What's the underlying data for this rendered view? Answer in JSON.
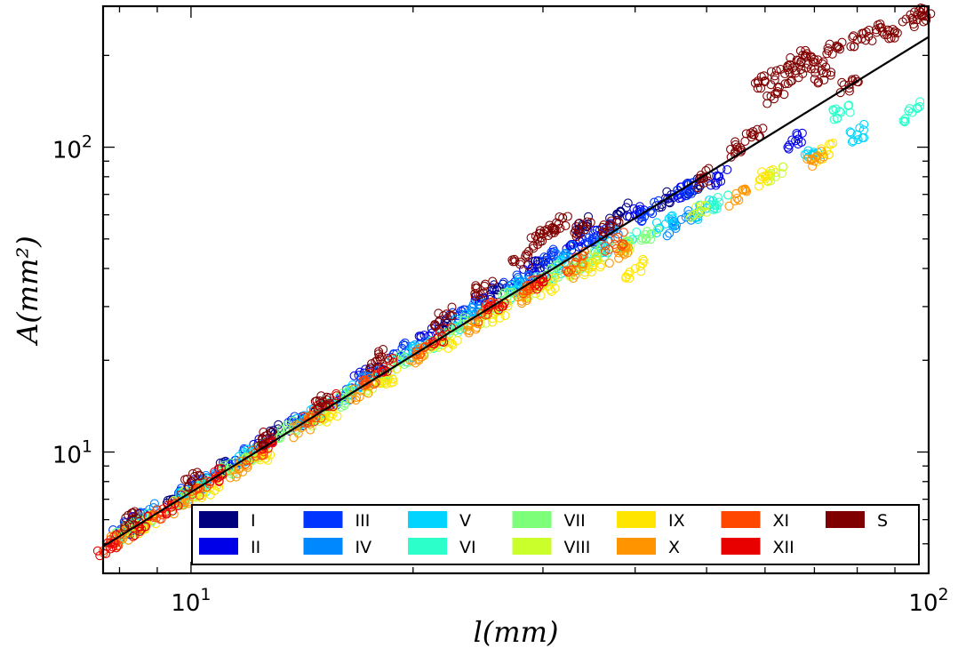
{
  "chart_data": {
    "type": "scatter",
    "title": "",
    "xlabel": "l(mm)",
    "ylabel": "A(mm²)",
    "xscale": "log",
    "yscale": "log",
    "xlim": [
      7.6,
      100
    ],
    "ylim": [
      4.0,
      290
    ],
    "xticks": [
      {
        "value": 10,
        "base": "10",
        "exp": "1"
      },
      {
        "value": 100,
        "base": "10",
        "exp": "2"
      }
    ],
    "yticks": [
      {
        "value": 10,
        "base": "10",
        "exp": "1"
      },
      {
        "value": 100,
        "base": "10",
        "exp": "2"
      }
    ],
    "marker": "open-circle",
    "legend": {
      "placement": "lower-right",
      "ncol": 7,
      "entries": [
        {
          "label": "I",
          "color": "#00007f"
        },
        {
          "label": "II",
          "color": "#0000e8"
        },
        {
          "label": "III",
          "color": "#0034ff"
        },
        {
          "label": "IV",
          "color": "#0088ff"
        },
        {
          "label": "V",
          "color": "#00d4ff"
        },
        {
          "label": "VI",
          "color": "#2cffca"
        },
        {
          "label": "VII",
          "color": "#7dff7a"
        },
        {
          "label": "VIII",
          "color": "#caff2c"
        },
        {
          "label": "IX",
          "color": "#ffe500"
        },
        {
          "label": "X",
          "color": "#ff9400"
        },
        {
          "label": "XI",
          "color": "#ff4700"
        },
        {
          "label": "XII",
          "color": "#e80000"
        },
        {
          "label": "S",
          "color": "#800000"
        }
      ]
    },
    "fit_line": {
      "x": [
        7.6,
        100
      ],
      "y": [
        4.9,
        230
      ],
      "color": "#000000"
    },
    "series": [
      {
        "name": "I",
        "points": [
          [
            8.2,
            5.6
          ],
          [
            9.5,
            7.0
          ],
          [
            11,
            8.8
          ],
          [
            13,
            11.5
          ],
          [
            15,
            14
          ],
          [
            18,
            19
          ],
          [
            22,
            26
          ],
          [
            26,
            34
          ],
          [
            30,
            42
          ],
          [
            34,
            55
          ],
          [
            38,
            60
          ],
          [
            44,
            68
          ],
          [
            48,
            75
          ]
        ]
      },
      {
        "name": "II",
        "points": [
          [
            8.5,
            6.0
          ],
          [
            10.2,
            7.9
          ],
          [
            12.5,
            10.6
          ],
          [
            14,
            12.4
          ],
          [
            17,
            17.5
          ],
          [
            21,
            24
          ],
          [
            25,
            32
          ],
          [
            29,
            40
          ],
          [
            33,
            48
          ],
          [
            36,
            52
          ],
          [
            40,
            60
          ],
          [
            46,
            70
          ],
          [
            52,
            80
          ],
          [
            66,
            105
          ]
        ]
      },
      {
        "name": "III",
        "points": [
          [
            8.0,
            5.5
          ],
          [
            9.8,
            7.4
          ],
          [
            11.5,
            9.4
          ],
          [
            13.8,
            12.6
          ],
          [
            16,
            15
          ],
          [
            19,
            21
          ],
          [
            23,
            28
          ],
          [
            27,
            35
          ],
          [
            31,
            44
          ],
          [
            35,
            50
          ],
          [
            42,
            62
          ],
          [
            47,
            72
          ]
        ]
      },
      {
        "name": "IV",
        "points": [
          [
            8.8,
            6.3
          ],
          [
            10.5,
            8.0
          ],
          [
            12,
            9.8
          ],
          [
            14.5,
            13
          ],
          [
            17.5,
            17.5
          ],
          [
            20.5,
            22
          ],
          [
            24,
            29
          ],
          [
            28,
            36
          ],
          [
            32,
            44
          ],
          [
            37,
            52
          ],
          [
            45,
            55
          ],
          [
            48,
            60
          ]
        ]
      },
      {
        "name": "V",
        "points": [
          [
            8.3,
            5.7
          ],
          [
            9.9,
            7.3
          ],
          [
            11.8,
            9.6
          ],
          [
            14.2,
            12.7
          ],
          [
            16.5,
            15.8
          ],
          [
            19.5,
            20.5
          ],
          [
            23.5,
            27
          ],
          [
            27.5,
            34
          ],
          [
            31.5,
            40
          ],
          [
            36,
            46
          ],
          [
            44,
            56
          ],
          [
            50,
            63
          ],
          [
            70,
            95
          ],
          [
            80,
            110
          ]
        ]
      },
      {
        "name": "VI",
        "points": [
          [
            8.6,
            5.9
          ],
          [
            10.4,
            7.7
          ],
          [
            12.3,
            10
          ],
          [
            15,
            13.5
          ],
          [
            18,
            17.8
          ],
          [
            21.5,
            23
          ],
          [
            25.5,
            29.5
          ],
          [
            29.5,
            36
          ],
          [
            34,
            42
          ],
          [
            39,
            48
          ],
          [
            52,
            66
          ],
          [
            76,
            130
          ],
          [
            95,
            130
          ]
        ]
      },
      {
        "name": "VII",
        "points": [
          [
            8.1,
            5.4
          ],
          [
            9.6,
            6.9
          ],
          [
            11.2,
            8.7
          ],
          [
            13.5,
            11.8
          ],
          [
            16.2,
            15
          ],
          [
            19.2,
            19.7
          ],
          [
            22.8,
            25.5
          ],
          [
            26.8,
            32
          ],
          [
            31,
            38.5
          ],
          [
            35.5,
            44
          ],
          [
            42,
            52
          ]
        ]
      },
      {
        "name": "VIII",
        "points": [
          [
            8.4,
            5.7
          ],
          [
            10.1,
            7.4
          ],
          [
            12.1,
            9.6
          ],
          [
            14.8,
            12.9
          ],
          [
            17.8,
            17
          ],
          [
            21.2,
            22
          ],
          [
            25.2,
            28
          ],
          [
            29.2,
            34.5
          ],
          [
            33.5,
            40.5
          ],
          [
            38.5,
            47
          ],
          [
            49,
            62
          ],
          [
            62,
            80
          ]
        ]
      },
      {
        "name": "IX",
        "points": [
          [
            8.7,
            5.8
          ],
          [
            10.6,
            7.6
          ],
          [
            12.7,
            9.9
          ],
          [
            15.5,
            13.4
          ],
          [
            18.5,
            17.5
          ],
          [
            22.3,
            23
          ],
          [
            26.3,
            29
          ],
          [
            30.5,
            35
          ],
          [
            35,
            41
          ],
          [
            40,
            40
          ],
          [
            60,
            80
          ],
          [
            72,
            95
          ]
        ]
      },
      {
        "name": "X",
        "points": [
          [
            8.0,
            5.2
          ],
          [
            9.7,
            6.8
          ],
          [
            11.6,
            8.8
          ],
          [
            14.1,
            12
          ],
          [
            17,
            15.9
          ],
          [
            20.3,
            20.8
          ],
          [
            24.3,
            26.6
          ],
          [
            28.5,
            33
          ],
          [
            33,
            39
          ],
          [
            38,
            45
          ],
          [
            55,
            68
          ],
          [
            70,
            90
          ]
        ]
      },
      {
        "name": "XI",
        "points": [
          [
            7.8,
            5.0
          ],
          [
            8.9,
            6.1
          ],
          [
            10.3,
            7.6
          ],
          [
            12.2,
            9.9
          ],
          [
            14.6,
            13
          ],
          [
            17.3,
            17
          ],
          [
            20.8,
            22.2
          ],
          [
            24.8,
            28.5
          ],
          [
            28.8,
            35
          ],
          [
            33.2,
            42
          ],
          [
            37.5,
            48
          ]
        ]
      },
      {
        "name": "XII",
        "points": [
          [
            7.7,
            4.9
          ],
          [
            8.5,
            5.7
          ],
          [
            9.4,
            6.7
          ],
          [
            10.8,
            8.3
          ],
          [
            12.8,
            10.8
          ],
          [
            15.3,
            14.2
          ],
          [
            18.3,
            18.6
          ],
          [
            21.9,
            24
          ],
          [
            25.9,
            30.5
          ],
          [
            30,
            37
          ]
        ]
      },
      {
        "name": "S",
        "points": [
          [
            8.3,
            6.0
          ],
          [
            10,
            8.0
          ],
          [
            12.5,
            11
          ],
          [
            15,
            14.5
          ],
          [
            18,
            20.5
          ],
          [
            22,
            28
          ],
          [
            25,
            35
          ],
          [
            28,
            42
          ],
          [
            29.5,
            50
          ],
          [
            30.5,
            53
          ],
          [
            31.5,
            56
          ],
          [
            34,
            55
          ],
          [
            37,
            55
          ],
          [
            50,
            80
          ],
          [
            55,
            100
          ],
          [
            58,
            110
          ],
          [
            62,
            150
          ],
          [
            66,
            175
          ],
          [
            70,
            190
          ],
          [
            75,
            215
          ],
          [
            80,
            225
          ],
          [
            85,
            238
          ],
          [
            90,
            240
          ],
          [
            95,
            265
          ],
          [
            98,
            270
          ],
          [
            60,
            165
          ],
          [
            63,
            180
          ],
          [
            68,
            200
          ],
          [
            72,
            175
          ],
          [
            78,
            160
          ]
        ]
      }
    ]
  }
}
